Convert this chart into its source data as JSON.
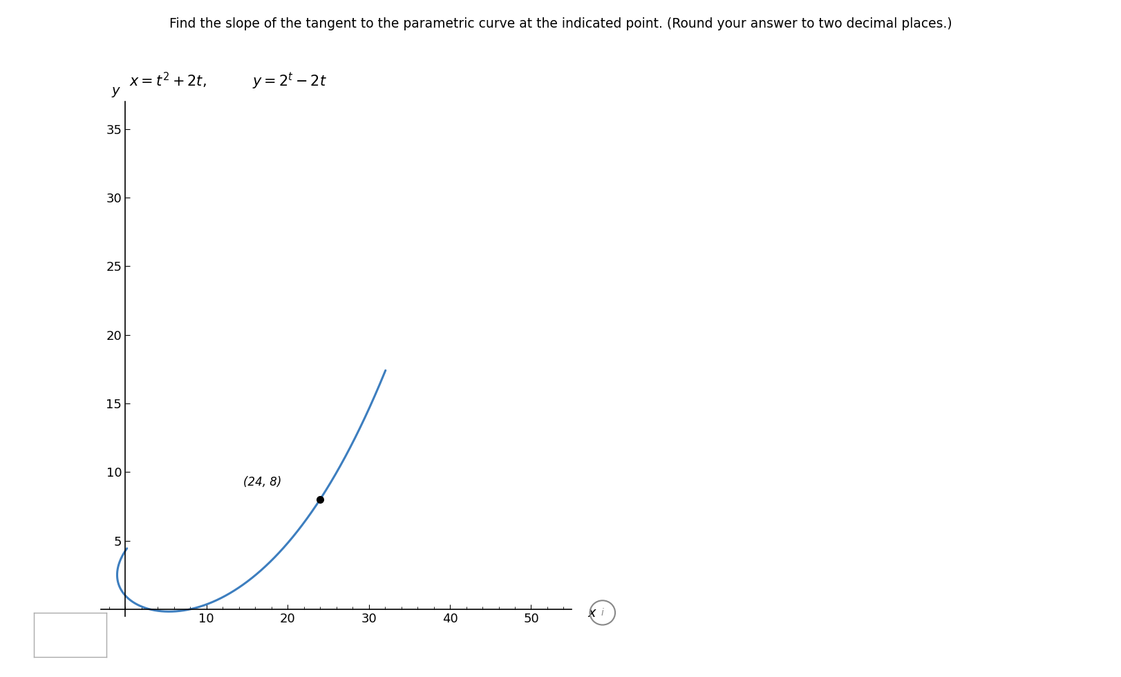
{
  "title_text": "Find the slope of the tangent to the parametric curve at the indicated point. (Round your answer to two decimal places.)",
  "xlabel": "x",
  "ylabel": "y",
  "xlim": [
    -3,
    55
  ],
  "ylim": [
    -0.5,
    37
  ],
  "xticks": [
    10,
    20,
    30,
    40,
    50
  ],
  "yticks": [
    5,
    10,
    15,
    20,
    25,
    30,
    35
  ],
  "point_x": 24,
  "point_y": 8,
  "point_label": "(24, 8)",
  "curve_color": "#3d7ebf",
  "curve_linewidth": 2.2,
  "t_start": -2.1,
  "t_end": 4.75,
  "bg_color": "#ffffff",
  "text_color": "#000000"
}
